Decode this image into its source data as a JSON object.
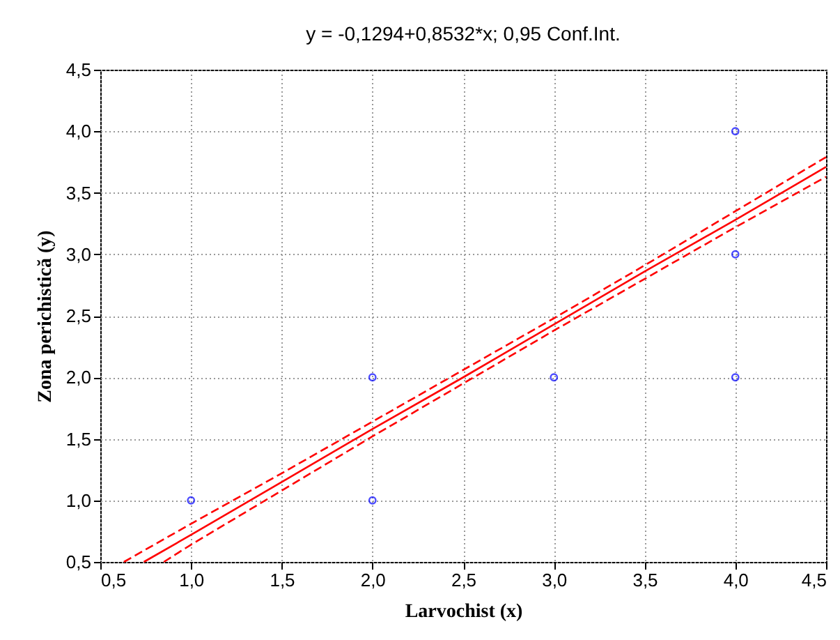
{
  "chart_data": {
    "type": "scatter",
    "title": "y = -0,1294+0,8532*x; 0,95 Conf.Int.",
    "xlabel": "Larvochist (x)",
    "ylabel": "Zona perichistică (y)",
    "xlim": [
      0.5,
      4.5
    ],
    "ylim": [
      0.5,
      4.5
    ],
    "xticks": [
      {
        "value": 0.5,
        "label": "0,5"
      },
      {
        "value": 1,
        "label": "1,0"
      },
      {
        "value": 1.5,
        "label": "1,5"
      },
      {
        "value": 2,
        "label": "2,0"
      },
      {
        "value": 2.5,
        "label": "2,5"
      },
      {
        "value": 3,
        "label": "3,0"
      },
      {
        "value": 3.5,
        "label": "3,5"
      },
      {
        "value": 4,
        "label": "4,0"
      },
      {
        "value": 4.5,
        "label": "4,5"
      }
    ],
    "yticks": [
      {
        "value": 0.5,
        "label": "0,5"
      },
      {
        "value": 1,
        "label": "1,0"
      },
      {
        "value": 1.5,
        "label": "1,5"
      },
      {
        "value": 2,
        "label": "2,0"
      },
      {
        "value": 2.5,
        "label": "2,5"
      },
      {
        "value": 3,
        "label": "3,0"
      },
      {
        "value": 3.5,
        "label": "3,5"
      },
      {
        "value": 4,
        "label": "4,0"
      },
      {
        "value": 4.5,
        "label": "4,5"
      }
    ],
    "grid": true,
    "series": [
      {
        "marker": "circle",
        "color": "#0000ff",
        "x": [
          1,
          2,
          2,
          3,
          4,
          4,
          4
        ],
        "values": [
          1,
          2,
          1,
          2,
          4,
          3,
          2
        ]
      },
      {
        "type": "line",
        "color": "#ff0000",
        "line_style": "solid",
        "x": [
          0.74,
          1,
          1.5,
          2,
          2.5,
          3,
          3.5,
          4,
          4.5
        ],
        "values": [
          0.5,
          0.72,
          1.15,
          1.58,
          2.0,
          2.43,
          2.86,
          3.28,
          3.71
        ]
      },
      {
        "type": "line",
        "color": "#ff0000",
        "line_style": "dashed",
        "x": [
          0.63,
          1,
          1.5,
          2,
          2.5,
          3,
          3.5,
          4,
          4.5
        ],
        "values": [
          0.5,
          0.81,
          1.22,
          1.64,
          2.06,
          2.48,
          2.91,
          3.35,
          3.79
        ]
      },
      {
        "type": "line",
        "color": "#ff0000",
        "line_style": "dashed",
        "x": [
          0.85,
          1,
          1.5,
          2,
          2.5,
          3,
          3.5,
          4,
          4.5
        ],
        "values": [
          0.5,
          0.64,
          1.08,
          1.52,
          1.95,
          2.38,
          2.8,
          3.22,
          3.63
        ]
      }
    ]
  }
}
